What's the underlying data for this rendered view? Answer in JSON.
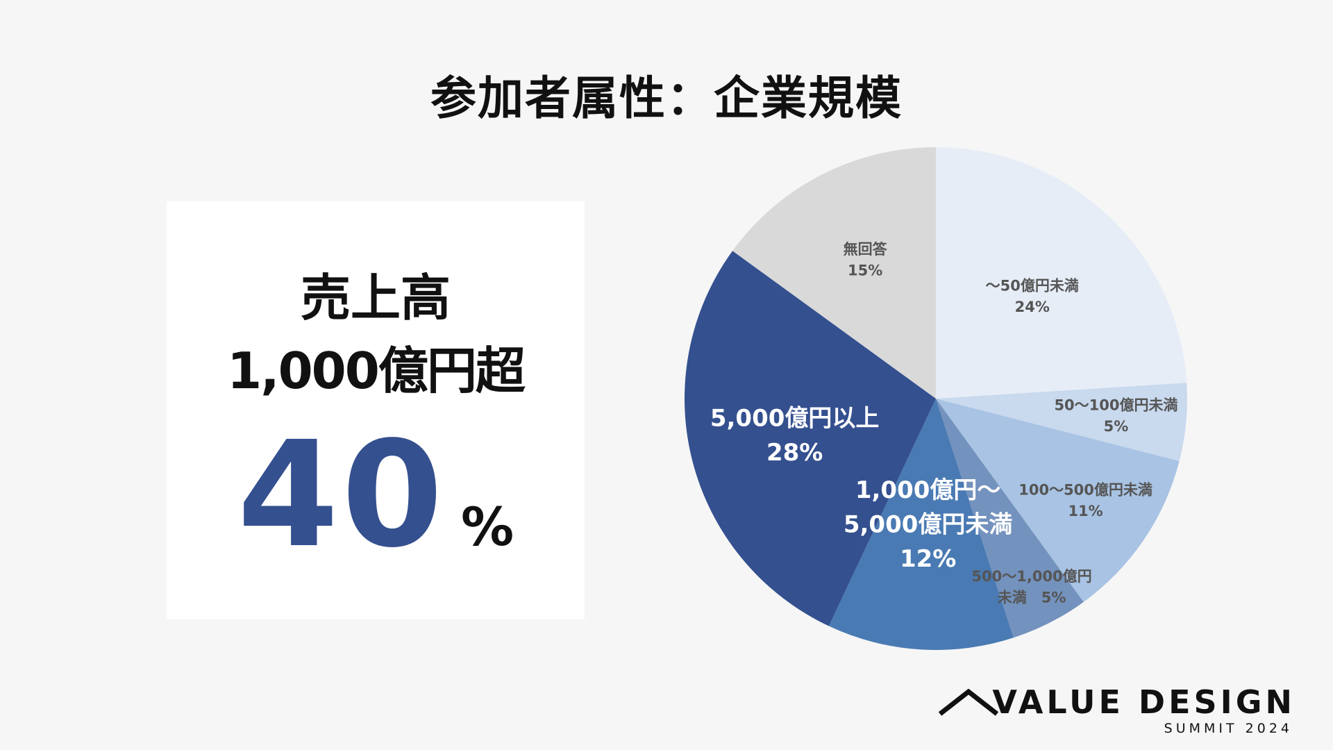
{
  "title": "参加者属性：企業規模",
  "highlight": {
    "line1": "売上高",
    "line2": "1,000億円超",
    "value": "40",
    "unit": "%"
  },
  "brand": {
    "name": "VALUE DESIGN",
    "sub": "SUMMIT 2024"
  },
  "chart_data": {
    "type": "pie",
    "title": "",
    "slices": [
      {
        "label": [
          "～50億円未満"
        ],
        "pct": "24%",
        "value": 24,
        "color": "#e6edf7",
        "text_color": "#555555"
      },
      {
        "label": [
          "50～100億円未満"
        ],
        "pct": "5%",
        "value": 5,
        "color": "#c9d9ee",
        "text_color": "#555555"
      },
      {
        "label": [
          "100～500億円未満"
        ],
        "pct": "11%",
        "value": 11,
        "color": "#a8c3e3",
        "text_color": "#555555"
      },
      {
        "label": [
          "500～1,000億円",
          "未満"
        ],
        "pct": "5%",
        "value": 5,
        "color": "#7392bd",
        "text_color": "#555555"
      },
      {
        "label": [
          "1,000億円～",
          "5,000億円未満"
        ],
        "pct": "12%",
        "value": 12,
        "color": "#4a7ab3",
        "text_color": "#ffffff"
      },
      {
        "label": [
          "5,000億円以上"
        ],
        "pct": "28%",
        "value": 28,
        "color": "#34508f",
        "text_color": "#ffffff"
      },
      {
        "label": [
          "無回答"
        ],
        "pct": "15%",
        "value": 15,
        "color": "#d9d9d9",
        "text_color": "#555555"
      }
    ]
  }
}
